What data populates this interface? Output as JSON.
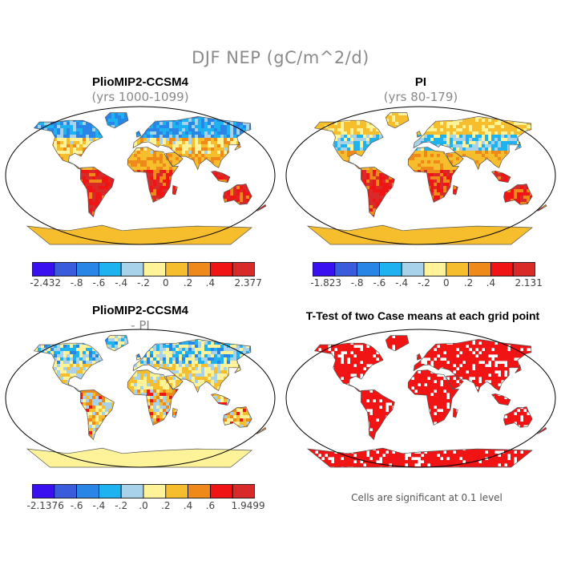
{
  "title": "DJF NEP (gC/m^2/d)",
  "panels": [
    {
      "title": "PlioMIP2-CCSM4",
      "subtitle": "(yrs 1000-1099)"
    },
    {
      "title": "PI",
      "subtitle": "(yrs 80-179)"
    },
    {
      "title": "PlioMIP2-CCSM4",
      "subtitle": "- PI"
    },
    {
      "title": "T-Test of two Case means at each grid point",
      "subtitle": ""
    }
  ],
  "colorbars": [
    {
      "colors": [
        "#3b10f0",
        "#3a5bdc",
        "#2a86e6",
        "#1fb2f0",
        "#a8d2ea",
        "#fff39a",
        "#f6bd2d",
        "#ef8a1a",
        "#f01414",
        "#d92a2a"
      ],
      "labels": [
        "-2.432",
        "-.8",
        "-.6",
        "-.4",
        "-.2",
        "0",
        ".2",
        ".4",
        "2.377"
      ]
    },
    {
      "colors": [
        "#3b10f0",
        "#3a5bdc",
        "#2a86e6",
        "#1fb2f0",
        "#a8d2ea",
        "#fff39a",
        "#f6bd2d",
        "#ef8a1a",
        "#f01414",
        "#d92a2a"
      ],
      "labels": [
        "-1.823",
        "-.8",
        "-.6",
        "-.4",
        "-.2",
        "0",
        ".2",
        ".4",
        "2.131"
      ]
    },
    {
      "colors": [
        "#3b10f0",
        "#3a5bdc",
        "#2a86e6",
        "#1fb2f0",
        "#a8d2ea",
        "#fff39a",
        "#f6bd2d",
        "#ef8a1a",
        "#f01414",
        "#d92a2a"
      ],
      "labels": [
        "-2.1376",
        "-.6",
        "-.4",
        "-.2",
        ".0",
        ".2",
        ".4",
        ".6",
        "1.9499"
      ]
    }
  ],
  "ttest_note": "Cells are significant at 0.1 level",
  "significance_color": "#f01414"
}
